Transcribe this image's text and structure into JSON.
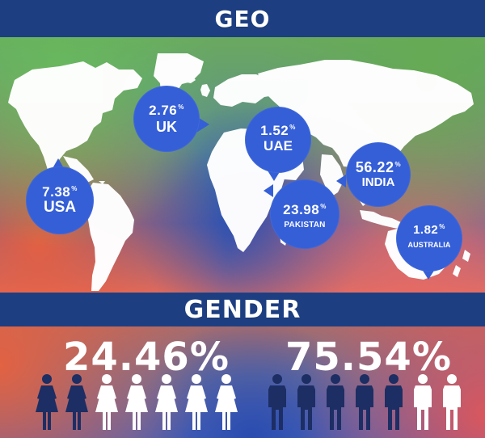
{
  "sections": {
    "geo_title": "GEO",
    "gender_title": "GENDER"
  },
  "map": {
    "bubbles": [
      {
        "id": "uk",
        "value": "2.76",
        "suffix": "%",
        "label": "UK"
      },
      {
        "id": "uae",
        "value": "1.52",
        "suffix": "%",
        "label": "UAE"
      },
      {
        "id": "usa",
        "value": "7.38",
        "suffix": "%",
        "label": "USA"
      },
      {
        "id": "pakistan",
        "value": "23.98",
        "suffix": "%",
        "label": "PAKISTAN"
      },
      {
        "id": "india",
        "value": "56.22",
        "suffix": "%",
        "label": "INDIA"
      },
      {
        "id": "australia",
        "value": "1.82",
        "suffix": "%",
        "label": "AUSTRALIA"
      }
    ]
  },
  "gender": {
    "female_percent": "24.46%",
    "male_percent": "75.54%"
  },
  "colors": {
    "header_band": "#1d3f82",
    "bubble": "#355fd7",
    "icon_highlight": "#1c2e63",
    "icon_light": "#ffffff"
  }
}
